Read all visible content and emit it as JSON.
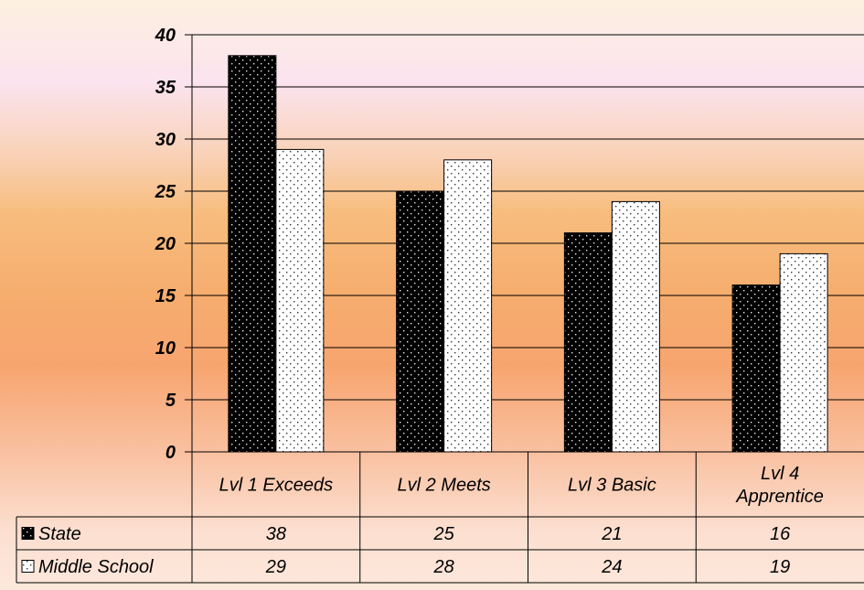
{
  "chart_data": {
    "type": "bar",
    "categories": [
      [
        "Lvl 1 Exceeds"
      ],
      [
        "Lvl 2 Meets"
      ],
      [
        "Lvl 3 Basic"
      ],
      [
        "Lvl 4",
        "Apprentice"
      ]
    ],
    "series": [
      {
        "name": "State",
        "values": [
          38,
          25,
          21,
          16
        ],
        "color": "#000000",
        "pattern": "dots-light-on-dark"
      },
      {
        "name": "Middle School",
        "values": [
          29,
          28,
          24,
          19
        ],
        "color": "#ffffff",
        "pattern": "dots-dark-on-light"
      }
    ],
    "y_ticks": [
      "0",
      "5",
      "10",
      "15",
      "20",
      "25",
      "30",
      "35",
      "40"
    ],
    "ylim": [
      0,
      40
    ],
    "grid": true,
    "legend": "data-table-rows",
    "title": "",
    "xlabel": "",
    "ylabel": ""
  }
}
